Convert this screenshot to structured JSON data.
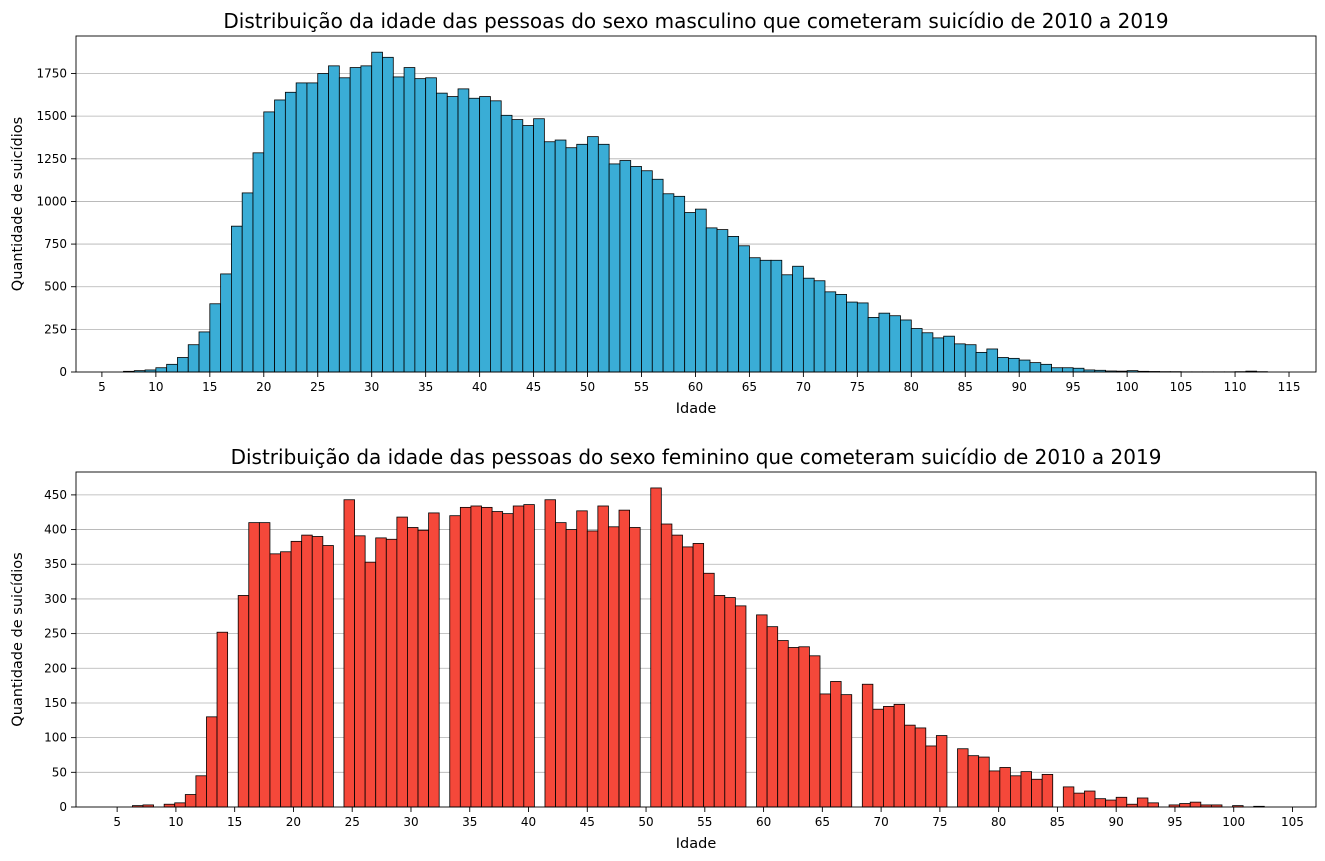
{
  "chart_data": [
    {
      "type": "bar",
      "title": "Distribuição da idade das pessoas do sexo masculino que cometeram suicídio de 2010 a 2019",
      "xlabel": "Idade",
      "ylabel": "Quantidade de suicídios",
      "xlim": [
        2.6,
        117.5
      ],
      "ylim": [
        0,
        1970
      ],
      "xticks": [
        5,
        10,
        15,
        20,
        25,
        30,
        35,
        40,
        45,
        50,
        55,
        60,
        65,
        70,
        75,
        80,
        85,
        90,
        95,
        100,
        105,
        110,
        115
      ],
      "yticks": [
        0,
        250,
        500,
        750,
        1000,
        1250,
        1500,
        1750
      ],
      "grid": "y",
      "color": "#3AADD6",
      "bars": [
        {
          "x": 7,
          "value": 4
        },
        {
          "x": 8,
          "value": 8
        },
        {
          "x": 9,
          "value": 12
        },
        {
          "x": 10,
          "value": 25
        },
        {
          "x": 11,
          "value": 45
        },
        {
          "x": 12,
          "value": 85
        },
        {
          "x": 13,
          "value": 160
        },
        {
          "x": 14,
          "value": 235
        },
        {
          "x": 15,
          "value": 400
        },
        {
          "x": 16,
          "value": 575
        },
        {
          "x": 17,
          "value": 855
        },
        {
          "x": 18,
          "value": 1050
        },
        {
          "x": 19,
          "value": 1285
        },
        {
          "x": 20,
          "value": 1525
        },
        {
          "x": 21,
          "value": 1595
        },
        {
          "x": 22,
          "value": 1640
        },
        {
          "x": 23,
          "value": 1695
        },
        {
          "x": 24,
          "value": 1695
        },
        {
          "x": 25,
          "value": 1750
        },
        {
          "x": 26,
          "value": 1795
        },
        {
          "x": 27,
          "value": 1725
        },
        {
          "x": 28,
          "value": 1785
        },
        {
          "x": 29,
          "value": 1795
        },
        {
          "x": 30,
          "value": 1875
        },
        {
          "x": 31,
          "value": 1845
        },
        {
          "x": 32,
          "value": 1730
        },
        {
          "x": 33,
          "value": 1785
        },
        {
          "x": 34,
          "value": 1720
        },
        {
          "x": 35,
          "value": 1725
        },
        {
          "x": 36,
          "value": 1635
        },
        {
          "x": 37,
          "value": 1615
        },
        {
          "x": 38,
          "value": 1660
        },
        {
          "x": 39,
          "value": 1605
        },
        {
          "x": 40,
          "value": 1615
        },
        {
          "x": 41,
          "value": 1590
        },
        {
          "x": 42,
          "value": 1505
        },
        {
          "x": 43,
          "value": 1480
        },
        {
          "x": 44,
          "value": 1445
        },
        {
          "x": 45,
          "value": 1485
        },
        {
          "x": 46,
          "value": 1350
        },
        {
          "x": 47,
          "value": 1360
        },
        {
          "x": 48,
          "value": 1315
        },
        {
          "x": 49,
          "value": 1335
        },
        {
          "x": 50,
          "value": 1380
        },
        {
          "x": 51,
          "value": 1335
        },
        {
          "x": 52,
          "value": 1220
        },
        {
          "x": 53,
          "value": 1240
        },
        {
          "x": 54,
          "value": 1205
        },
        {
          "x": 55,
          "value": 1180
        },
        {
          "x": 56,
          "value": 1130
        },
        {
          "x": 57,
          "value": 1045
        },
        {
          "x": 58,
          "value": 1030
        },
        {
          "x": 59,
          "value": 935
        },
        {
          "x": 60,
          "value": 955
        },
        {
          "x": 61,
          "value": 845
        },
        {
          "x": 62,
          "value": 835
        },
        {
          "x": 63,
          "value": 795
        },
        {
          "x": 64,
          "value": 740
        },
        {
          "x": 65,
          "value": 670
        },
        {
          "x": 66,
          "value": 655
        },
        {
          "x": 67,
          "value": 655
        },
        {
          "x": 68,
          "value": 570
        },
        {
          "x": 69,
          "value": 620
        },
        {
          "x": 70,
          "value": 550
        },
        {
          "x": 71,
          "value": 535
        },
        {
          "x": 72,
          "value": 470
        },
        {
          "x": 73,
          "value": 455
        },
        {
          "x": 74,
          "value": 410
        },
        {
          "x": 75,
          "value": 405
        },
        {
          "x": 76,
          "value": 320
        },
        {
          "x": 77,
          "value": 345
        },
        {
          "x": 78,
          "value": 330
        },
        {
          "x": 79,
          "value": 305
        },
        {
          "x": 80,
          "value": 255
        },
        {
          "x": 81,
          "value": 230
        },
        {
          "x": 82,
          "value": 200
        },
        {
          "x": 83,
          "value": 210
        },
        {
          "x": 84,
          "value": 165
        },
        {
          "x": 85,
          "value": 160
        },
        {
          "x": 86,
          "value": 115
        },
        {
          "x": 87,
          "value": 135
        },
        {
          "x": 88,
          "value": 85
        },
        {
          "x": 89,
          "value": 80
        },
        {
          "x": 90,
          "value": 70
        },
        {
          "x": 91,
          "value": 55
        },
        {
          "x": 92,
          "value": 45
        },
        {
          "x": 93,
          "value": 25
        },
        {
          "x": 94,
          "value": 25
        },
        {
          "x": 95,
          "value": 22
        },
        {
          "x": 96,
          "value": 12
        },
        {
          "x": 97,
          "value": 10
        },
        {
          "x": 98,
          "value": 6
        },
        {
          "x": 99,
          "value": 5
        },
        {
          "x": 100,
          "value": 8
        },
        {
          "x": 101,
          "value": 4
        },
        {
          "x": 102,
          "value": 3
        },
        {
          "x": 103,
          "value": 2
        },
        {
          "x": 104,
          "value": 2
        },
        {
          "x": 105,
          "value": 1
        },
        {
          "x": 106,
          "value": 1
        },
        {
          "x": 107,
          "value": 1
        },
        {
          "x": 108,
          "value": 1
        },
        {
          "x": 109,
          "value": 1
        },
        {
          "x": 110,
          "value": 2
        },
        {
          "x": 111,
          "value": 5
        },
        {
          "x": 112,
          "value": 2
        }
      ]
    },
    {
      "type": "bar",
      "title": "Distribuição da idade das pessoas do sexo feminino que cometeram suicídio de 2010 a 2019",
      "xlabel": "Idade",
      "ylabel": "Quantidade de suicídios",
      "xlim": [
        1.5,
        107.0
      ],
      "ylim": [
        0,
        483
      ],
      "xticks": [
        5,
        10,
        15,
        20,
        25,
        30,
        35,
        40,
        45,
        50,
        55,
        60,
        65,
        70,
        75,
        80,
        85,
        90,
        95,
        100,
        105
      ],
      "yticks": [
        0,
        50,
        100,
        150,
        200,
        250,
        300,
        350,
        400,
        450
      ],
      "grid": "y",
      "color": "#F5483A",
      "bars": [
        {
          "x": 6.3,
          "value": 2
        },
        {
          "x": 7.2,
          "value": 3
        },
        {
          "x": 9.0,
          "value": 4
        },
        {
          "x": 9.9,
          "value": 6
        },
        {
          "x": 10.8,
          "value": 18
        },
        {
          "x": 11.7,
          "value": 45
        },
        {
          "x": 12.6,
          "value": 130
        },
        {
          "x": 13.5,
          "value": 252
        },
        {
          "x": 15.3,
          "value": 305
        },
        {
          "x": 16.2,
          "value": 410
        },
        {
          "x": 17.1,
          "value": 410
        },
        {
          "x": 18.0,
          "value": 365
        },
        {
          "x": 18.9,
          "value": 368
        },
        {
          "x": 19.8,
          "value": 383
        },
        {
          "x": 20.7,
          "value": 392
        },
        {
          "x": 21.6,
          "value": 390
        },
        {
          "x": 22.5,
          "value": 377
        },
        {
          "x": 24.3,
          "value": 443
        },
        {
          "x": 25.2,
          "value": 391
        },
        {
          "x": 26.1,
          "value": 353
        },
        {
          "x": 27.0,
          "value": 388
        },
        {
          "x": 27.9,
          "value": 386
        },
        {
          "x": 28.8,
          "value": 418
        },
        {
          "x": 29.7,
          "value": 403
        },
        {
          "x": 30.6,
          "value": 399
        },
        {
          "x": 31.5,
          "value": 424
        },
        {
          "x": 33.3,
          "value": 420
        },
        {
          "x": 34.2,
          "value": 432
        },
        {
          "x": 35.1,
          "value": 434
        },
        {
          "x": 36.0,
          "value": 432
        },
        {
          "x": 36.9,
          "value": 426
        },
        {
          "x": 37.8,
          "value": 423
        },
        {
          "x": 38.7,
          "value": 434
        },
        {
          "x": 39.6,
          "value": 436
        },
        {
          "x": 41.4,
          "value": 443
        },
        {
          "x": 42.3,
          "value": 410
        },
        {
          "x": 43.2,
          "value": 400
        },
        {
          "x": 44.1,
          "value": 427
        },
        {
          "x": 45.0,
          "value": 398
        },
        {
          "x": 45.9,
          "value": 434
        },
        {
          "x": 46.8,
          "value": 404
        },
        {
          "x": 47.7,
          "value": 428
        },
        {
          "x": 48.6,
          "value": 403
        },
        {
          "x": 50.4,
          "value": 460
        },
        {
          "x": 51.3,
          "value": 408
        },
        {
          "x": 52.2,
          "value": 392
        },
        {
          "x": 53.1,
          "value": 375
        },
        {
          "x": 54.0,
          "value": 380
        },
        {
          "x": 54.9,
          "value": 337
        },
        {
          "x": 55.8,
          "value": 305
        },
        {
          "x": 56.7,
          "value": 302
        },
        {
          "x": 57.6,
          "value": 290
        },
        {
          "x": 59.4,
          "value": 277
        },
        {
          "x": 60.3,
          "value": 260
        },
        {
          "x": 61.2,
          "value": 240
        },
        {
          "x": 62.1,
          "value": 230
        },
        {
          "x": 63.0,
          "value": 231
        },
        {
          "x": 63.9,
          "value": 218
        },
        {
          "x": 64.8,
          "value": 163
        },
        {
          "x": 65.7,
          "value": 181
        },
        {
          "x": 66.6,
          "value": 162
        },
        {
          "x": 68.4,
          "value": 177
        },
        {
          "x": 69.3,
          "value": 141
        },
        {
          "x": 70.2,
          "value": 145
        },
        {
          "x": 71.1,
          "value": 148
        },
        {
          "x": 72.0,
          "value": 118
        },
        {
          "x": 72.9,
          "value": 114
        },
        {
          "x": 73.8,
          "value": 88
        },
        {
          "x": 74.7,
          "value": 103
        },
        {
          "x": 76.5,
          "value": 84
        },
        {
          "x": 77.4,
          "value": 74
        },
        {
          "x": 78.3,
          "value": 72
        },
        {
          "x": 79.2,
          "value": 52
        },
        {
          "x": 80.1,
          "value": 57
        },
        {
          "x": 81.0,
          "value": 45
        },
        {
          "x": 81.9,
          "value": 51
        },
        {
          "x": 82.8,
          "value": 40
        },
        {
          "x": 83.7,
          "value": 47
        },
        {
          "x": 85.5,
          "value": 29
        },
        {
          "x": 86.4,
          "value": 20
        },
        {
          "x": 87.3,
          "value": 23
        },
        {
          "x": 88.2,
          "value": 12
        },
        {
          "x": 89.1,
          "value": 10
        },
        {
          "x": 90.0,
          "value": 14
        },
        {
          "x": 90.9,
          "value": 4
        },
        {
          "x": 91.8,
          "value": 13
        },
        {
          "x": 92.7,
          "value": 6
        },
        {
          "x": 94.5,
          "value": 3
        },
        {
          "x": 95.4,
          "value": 5
        },
        {
          "x": 96.3,
          "value": 7
        },
        {
          "x": 97.2,
          "value": 3
        },
        {
          "x": 98.1,
          "value": 3
        },
        {
          "x": 99.9,
          "value": 2
        },
        {
          "x": 101.7,
          "value": 1
        }
      ]
    }
  ]
}
